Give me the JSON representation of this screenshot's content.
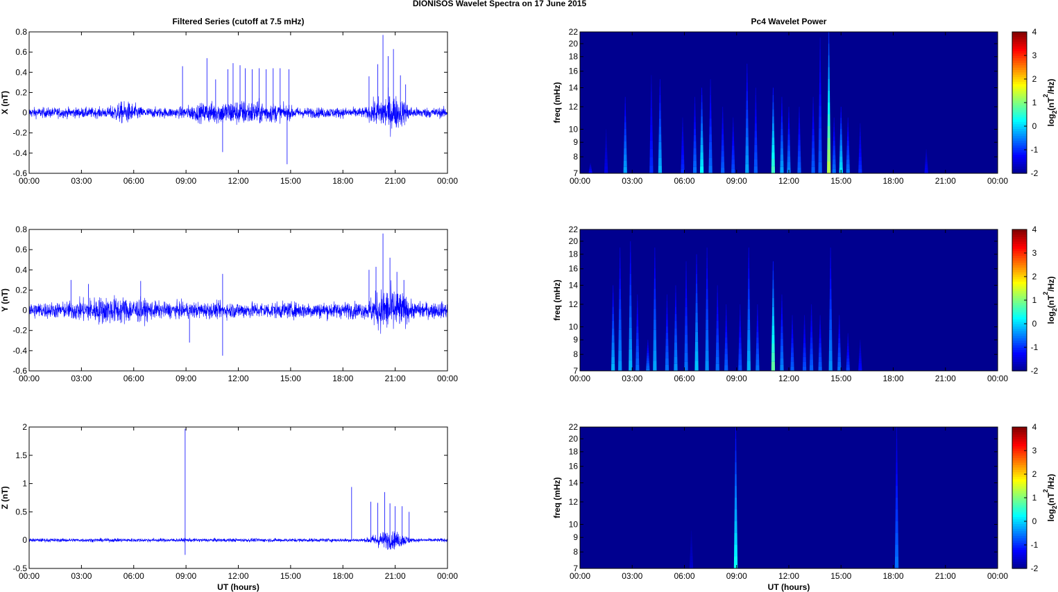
{
  "figure_title": "DIONISOS Wavelet Spectra on 17 June      2015",
  "colors": {
    "trace": "#0000ff",
    "spectrum_bg": "#00008f",
    "axis": "#000000"
  },
  "colormap": [
    "#00008f",
    "#0000ff",
    "#0080ff",
    "#00ffff",
    "#80ff80",
    "#ffff00",
    "#ff8000",
    "#ff0000",
    "#800000"
  ],
  "chart_data": [
    {
      "type": "line",
      "title": "Filtered Series (cutoff at 7.5 mHz)",
      "ylabel": "X (nT)",
      "xlabel": "",
      "xticks": [
        "00:00",
        "03:00",
        "06:00",
        "09:00",
        "12:00",
        "15:00",
        "18:00",
        "21:00",
        "00:00"
      ],
      "yticks": [
        "0.8",
        "0.6",
        "0.4",
        "0.2",
        "0",
        "-0.2",
        "-0.4",
        "-0.6"
      ],
      "ylim": [
        -0.6,
        0.8
      ],
      "series": [
        {
          "values_description_only": true
        }
      ],
      "noise_std": 0.035,
      "bursts": [
        {
          "start": 19.3,
          "end": 22.0,
          "amp": 0.09
        },
        {
          "start": 8.5,
          "end": 15.5,
          "amp": 0.05
        },
        {
          "start": 4.5,
          "end": 6.5,
          "amp": 0.04
        }
      ],
      "spikes": [
        {
          "t": 8.8,
          "v": 0.46
        },
        {
          "t": 10.2,
          "v": 0.54
        },
        {
          "t": 10.7,
          "v": 0.33
        },
        {
          "t": 11.1,
          "v": -0.39
        },
        {
          "t": 11.4,
          "v": 0.43
        },
        {
          "t": 11.7,
          "v": 0.49
        },
        {
          "t": 12.1,
          "v": 0.47
        },
        {
          "t": 12.4,
          "v": 0.44
        },
        {
          "t": 12.8,
          "v": 0.43
        },
        {
          "t": 13.2,
          "v": 0.44
        },
        {
          "t": 13.6,
          "v": 0.43
        },
        {
          "t": 14.0,
          "v": 0.44
        },
        {
          "t": 14.4,
          "v": 0.44
        },
        {
          "t": 14.8,
          "v": -0.51
        },
        {
          "t": 14.9,
          "v": 0.43
        },
        {
          "t": 19.5,
          "v": 0.36
        },
        {
          "t": 20.0,
          "v": 0.48
        },
        {
          "t": 20.3,
          "v": 0.77
        },
        {
          "t": 20.6,
          "v": 0.56
        },
        {
          "t": 20.9,
          "v": 0.63
        },
        {
          "t": 21.3,
          "v": 0.37
        },
        {
          "t": 21.6,
          "v": 0.28
        }
      ]
    },
    {
      "type": "line",
      "title": "",
      "ylabel": "Y (nT)",
      "xlabel": "",
      "xticks": [
        "00:00",
        "03:00",
        "06:00",
        "09:00",
        "12:00",
        "15:00",
        "18:00",
        "21:00",
        "00:00"
      ],
      "yticks": [
        "0.8",
        "0.6",
        "0.4",
        "0.2",
        "0",
        "-0.2",
        "-0.4",
        "-0.6"
      ],
      "ylim": [
        -0.6,
        0.8
      ],
      "noise_std": 0.055,
      "bursts": [
        {
          "start": 19.3,
          "end": 22.0,
          "amp": 0.1
        },
        {
          "start": 2.0,
          "end": 7.5,
          "amp": 0.04
        }
      ],
      "spikes": [
        {
          "t": 2.4,
          "v": 0.3
        },
        {
          "t": 3.4,
          "v": 0.26
        },
        {
          "t": 6.4,
          "v": 0.29
        },
        {
          "t": 9.2,
          "v": -0.32
        },
        {
          "t": 11.1,
          "v": 0.36
        },
        {
          "t": 11.1,
          "v": -0.45
        },
        {
          "t": 19.5,
          "v": 0.4
        },
        {
          "t": 19.9,
          "v": 0.43
        },
        {
          "t": 20.3,
          "v": 0.76
        },
        {
          "t": 20.7,
          "v": 0.52
        },
        {
          "t": 21.1,
          "v": 0.38
        },
        {
          "t": 21.5,
          "v": 0.3
        }
      ]
    },
    {
      "type": "line",
      "title": "",
      "ylabel": "Z (nT)",
      "xlabel": "UT (hours)",
      "xticks": [
        "00:00",
        "03:00",
        "06:00",
        "09:00",
        "12:00",
        "15:00",
        "18:00",
        "21:00",
        "00:00"
      ],
      "yticks": [
        "2",
        "1.5",
        "1",
        "0.5",
        "0",
        "-0.5"
      ],
      "ylim": [
        -0.5,
        2.0
      ],
      "noise_std": 0.022,
      "bursts": [
        {
          "start": 19.3,
          "end": 22.0,
          "amp": 0.09
        }
      ],
      "spikes": [
        {
          "t": 8.95,
          "v": 1.97
        },
        {
          "t": 8.95,
          "v": -0.26
        },
        {
          "t": 18.5,
          "v": 0.94
        },
        {
          "t": 19.6,
          "v": 0.68
        },
        {
          "t": 20.0,
          "v": 0.66
        },
        {
          "t": 20.4,
          "v": 0.85
        },
        {
          "t": 20.7,
          "v": 0.65
        },
        {
          "t": 21.0,
          "v": 0.6
        },
        {
          "t": 21.4,
          "v": 0.6
        },
        {
          "t": 21.8,
          "v": 0.5
        }
      ]
    },
    {
      "type": "heatmap",
      "title": "Pc4 Wavelet Power",
      "ylabel": "freq (mHz)",
      "xlabel": "",
      "colorbar_label": "log2(nT2/Hz)",
      "xticks": [
        "00:00",
        "03:00",
        "06:00",
        "09:00",
        "12:00",
        "15:00",
        "18:00",
        "21:00",
        "00:00"
      ],
      "yticks": [
        "22",
        "20",
        "18",
        "16",
        "14",
        "12",
        "10",
        "9",
        "8",
        "7"
      ],
      "ylim": [
        7,
        22
      ],
      "clim": [
        -2,
        4
      ],
      "colorbar_ticks": [
        "4",
        "3",
        "2",
        "1",
        "0",
        "-1",
        "-2"
      ],
      "streaks": [
        {
          "t": 0.6,
          "top": 7.6,
          "v": -1.2
        },
        {
          "t": 1.5,
          "top": 10.0,
          "v": -1.4
        },
        {
          "t": 2.6,
          "top": 13.0,
          "v": -0.3
        },
        {
          "t": 4.1,
          "top": 15.5,
          "v": -1.0
        },
        {
          "t": 4.6,
          "top": 15.0,
          "v": -0.2
        },
        {
          "t": 5.9,
          "top": 11.0,
          "v": -1.0
        },
        {
          "t": 6.6,
          "top": 13.0,
          "v": -0.6
        },
        {
          "t": 7.0,
          "top": 14.0,
          "v": 0.2
        },
        {
          "t": 7.5,
          "top": 15.0,
          "v": -0.6
        },
        {
          "t": 8.2,
          "top": 12.0,
          "v": -0.7
        },
        {
          "t": 8.8,
          "top": 11.0,
          "v": -0.8
        },
        {
          "t": 9.6,
          "top": 17.0,
          "v": -0.3
        },
        {
          "t": 10.1,
          "top": 14.0,
          "v": -0.7
        },
        {
          "t": 11.1,
          "top": 14.0,
          "v": 0.6
        },
        {
          "t": 11.6,
          "top": 13.0,
          "v": -0.3
        },
        {
          "t": 12.0,
          "top": 12.0,
          "v": -0.5
        },
        {
          "t": 12.6,
          "top": 12.0,
          "v": -0.7
        },
        {
          "t": 13.4,
          "top": 13.0,
          "v": -0.7
        },
        {
          "t": 13.8,
          "top": 21.0,
          "v": -0.7
        },
        {
          "t": 14.3,
          "top": 22.0,
          "v": 1.3
        },
        {
          "t": 14.6,
          "top": 11.0,
          "v": -0.6
        },
        {
          "t": 15.0,
          "top": 12.0,
          "v": 0.1
        },
        {
          "t": 15.4,
          "top": 11.0,
          "v": -0.6
        },
        {
          "t": 16.1,
          "top": 10.5,
          "v": -1.0
        },
        {
          "t": 19.9,
          "top": 8.5,
          "v": -1.3
        }
      ]
    },
    {
      "type": "heatmap",
      "title": "",
      "ylabel": "freq (mHz)",
      "xlabel": "",
      "colorbar_label": "log2(nT2/Hz)",
      "xticks": [
        "00:00",
        "03:00",
        "06:00",
        "09:00",
        "12:00",
        "15:00",
        "18:00",
        "21:00",
        "00:00"
      ],
      "yticks": [
        "22",
        "20",
        "18",
        "16",
        "14",
        "12",
        "10",
        "9",
        "8",
        "7"
      ],
      "ylim": [
        7,
        22
      ],
      "clim": [
        -2,
        4
      ],
      "colorbar_ticks": [
        "4",
        "3",
        "2",
        "1",
        "0",
        "-1",
        "-2"
      ],
      "streaks": [
        {
          "t": 1.9,
          "top": 14.0,
          "v": -0.2
        },
        {
          "t": 2.3,
          "top": 19.0,
          "v": -0.4
        },
        {
          "t": 2.9,
          "top": 20.0,
          "v": -0.2
        },
        {
          "t": 3.3,
          "top": 13.0,
          "v": -0.6
        },
        {
          "t": 3.9,
          "top": 9.0,
          "v": -0.6
        },
        {
          "t": 4.3,
          "top": 19.0,
          "v": -0.3
        },
        {
          "t": 5.0,
          "top": 13.0,
          "v": -0.6
        },
        {
          "t": 5.5,
          "top": 14.0,
          "v": -0.4
        },
        {
          "t": 6.1,
          "top": 17.0,
          "v": -0.6
        },
        {
          "t": 6.7,
          "top": 18.0,
          "v": -0.1
        },
        {
          "t": 7.3,
          "top": 19.0,
          "v": -0.4
        },
        {
          "t": 7.9,
          "top": 14.0,
          "v": -0.6
        },
        {
          "t": 8.4,
          "top": 12.0,
          "v": -0.7
        },
        {
          "t": 9.2,
          "top": 12.0,
          "v": -0.8
        },
        {
          "t": 9.7,
          "top": 19.0,
          "v": -0.2
        },
        {
          "t": 10.2,
          "top": 12.0,
          "v": -0.6
        },
        {
          "t": 11.1,
          "top": 17.0,
          "v": 0.8
        },
        {
          "t": 11.6,
          "top": 13.0,
          "v": -0.5
        },
        {
          "t": 12.2,
          "top": 11.0,
          "v": -0.7
        },
        {
          "t": 12.9,
          "top": 11.0,
          "v": -0.8
        },
        {
          "t": 13.3,
          "top": 12.0,
          "v": -0.7
        },
        {
          "t": 13.8,
          "top": 11.0,
          "v": -0.7
        },
        {
          "t": 14.4,
          "top": 19.0,
          "v": -0.4
        },
        {
          "t": 14.9,
          "top": 11.0,
          "v": -0.6
        },
        {
          "t": 15.4,
          "top": 9.5,
          "v": -0.9
        },
        {
          "t": 16.1,
          "top": 9.0,
          "v": -1.2
        }
      ]
    },
    {
      "type": "heatmap",
      "title": "",
      "ylabel": "freq (mHz)",
      "xlabel": "UT (hours)",
      "colorbar_label": "log2(nT2/Hz)",
      "xticks": [
        "00:00",
        "03:00",
        "06:00",
        "09:00",
        "12:00",
        "15:00",
        "18:00",
        "21:00",
        "00:00"
      ],
      "yticks": [
        "22",
        "20",
        "18",
        "16",
        "14",
        "12",
        "10",
        "9",
        "8",
        "7"
      ],
      "ylim": [
        7,
        22
      ],
      "clim": [
        -2,
        4
      ],
      "colorbar_ticks": [
        "4",
        "3",
        "2",
        "1",
        "0",
        "-1",
        "-2"
      ],
      "streaks": [
        {
          "t": 8.95,
          "top": 22.0,
          "v": 0.3
        },
        {
          "t": 18.2,
          "top": 22.0,
          "v": -0.6
        },
        {
          "t": 6.4,
          "top": 9.5,
          "v": -1.6
        }
      ]
    }
  ]
}
